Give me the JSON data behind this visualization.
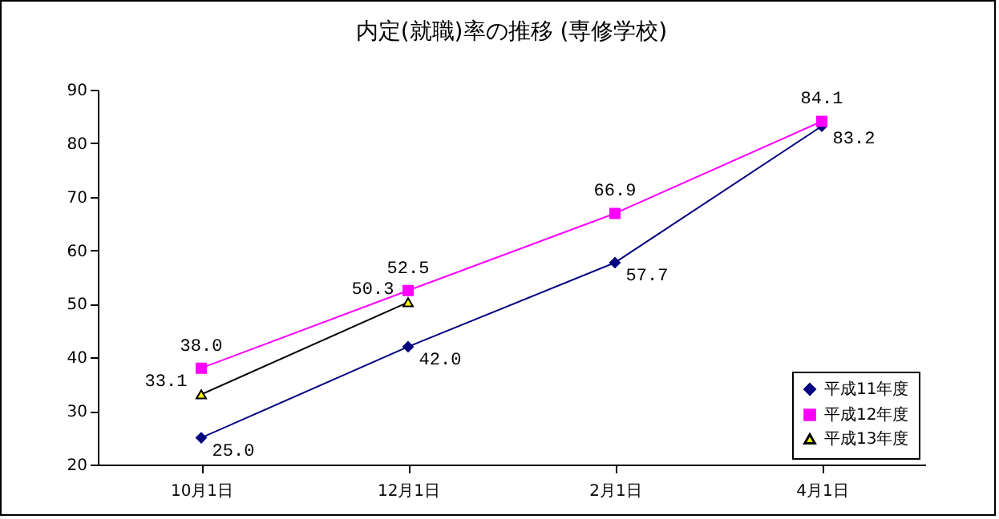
{
  "chart_data": {
    "type": "line",
    "title": "内定(就職)率の推移 (専修学校)",
    "categories": [
      "10月1日",
      "12月1日",
      "2月1日",
      "4月1日"
    ],
    "series": [
      {
        "name": "平成11年度",
        "color": "#000080",
        "marker": "diamond",
        "values": [
          25.0,
          42.0,
          57.7,
          83.2
        ],
        "value_labels": [
          "25.0",
          "42.0",
          "57.7",
          "83.2"
        ]
      },
      {
        "name": "平成12年度",
        "color": "#ff00ff",
        "marker": "square",
        "values": [
          38.0,
          52.5,
          66.9,
          84.1
        ],
        "value_labels": [
          "38.0",
          "52.5",
          "66.9",
          "84.1"
        ]
      },
      {
        "name": "平成13年度",
        "color": "#000000",
        "marker": "triangle",
        "values": [
          33.1,
          50.3,
          null,
          null
        ],
        "value_labels": [
          "33.1",
          "50.3",
          null,
          null
        ]
      }
    ],
    "ylim": [
      20,
      90
    ],
    "yticks": [
      20,
      30,
      40,
      50,
      60,
      70,
      80,
      90
    ],
    "grid": false,
    "legend": "bottom right"
  }
}
